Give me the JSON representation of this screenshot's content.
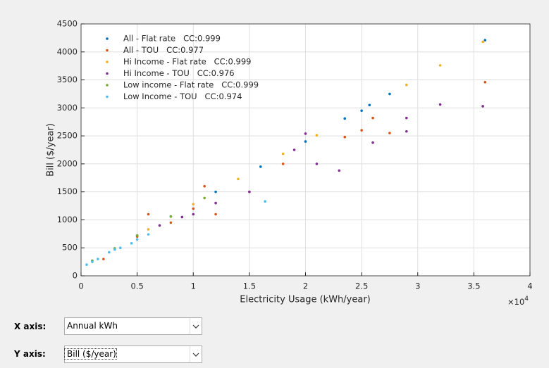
{
  "chart_data": {
    "type": "scatter",
    "xlabel": "Electricity Usage (kWh/year)",
    "ylabel": "Bill ($/year)",
    "x_multiplier": {
      "base": "×10",
      "exponent": "4"
    },
    "xlim": [
      0,
      40000
    ],
    "xticks": [
      0,
      {
        "value": 5000,
        "label": "0.5"
      },
      {
        "value": 10000,
        "label": "1"
      },
      {
        "value": 15000,
        "label": "1.5"
      },
      {
        "value": 20000,
        "label": "2"
      },
      {
        "value": 25000,
        "label": "2.5"
      },
      {
        "value": 30000,
        "label": "3"
      },
      {
        "value": 35000,
        "label": "3.5"
      },
      {
        "value": 40000,
        "label": "4"
      }
    ],
    "ylim": [
      0,
      4500
    ],
    "yticks": [
      0,
      500,
      1000,
      1500,
      2000,
      2500,
      3000,
      3500,
      4000,
      4500
    ],
    "grid": true,
    "legend": "upper left",
    "series": [
      {
        "name": "All - Flat rate   CC:0.999",
        "color": "#0072BD",
        "x": [
          1000,
          3000,
          5000,
          8000,
          12000,
          16000,
          20000,
          23500,
          25000,
          25700,
          27500,
          36000
        ],
        "values": [
          270,
          490,
          720,
          1060,
          1500,
          1950,
          2400,
          2810,
          2950,
          3050,
          3250,
          4210
        ]
      },
      {
        "name": "All - TOU   CC:0.977",
        "color": "#D95319",
        "x": [
          2000,
          5000,
          6000,
          8000,
          10000,
          11000,
          12000,
          15000,
          18000,
          23500,
          25000,
          26000,
          27500,
          36000
        ],
        "values": [
          300,
          700,
          1100,
          950,
          1200,
          1600,
          1100,
          1500,
          2000,
          2480,
          2600,
          2820,
          2550,
          3460
        ]
      },
      {
        "name": "Hi Income - Flat rate   CC:0.999",
        "color": "#EDB120",
        "x": [
          6000,
          10000,
          14000,
          18000,
          21000,
          29000,
          32000,
          35800
        ],
        "values": [
          830,
          1280,
          1730,
          2180,
          2510,
          3410,
          3760,
          4180
        ]
      },
      {
        "name": "Hi Income - TOU   CC:0.976",
        "color": "#7E2F8E",
        "x": [
          7000,
          9000,
          10000,
          12000,
          15000,
          19000,
          20000,
          21000,
          23000,
          26000,
          29000,
          29000,
          32000,
          35800
        ],
        "values": [
          900,
          1050,
          1100,
          1300,
          1500,
          2250,
          2540,
          2000,
          1880,
          2380,
          2820,
          2580,
          3060,
          3030
        ]
      },
      {
        "name": "Low income - Flat rate   CC:0.999",
        "color": "#77AC30",
        "x": [
          1000,
          3000,
          5000,
          8000,
          11000
        ],
        "values": [
          270,
          490,
          720,
          1060,
          1390
        ]
      },
      {
        "name": "Low Income - TOU   CC:0.974",
        "color": "#4DBEEE",
        "x": [
          500,
          1000,
          1500,
          2500,
          3000,
          3500,
          4500,
          5000,
          6000,
          16400
        ],
        "values": [
          200,
          250,
          300,
          420,
          470,
          500,
          580,
          650,
          740,
          1330
        ]
      }
    ]
  },
  "controls": [
    {
      "label": "X axis:",
      "selected": "Annual kWh"
    },
    {
      "label": "Y axis:",
      "selected": "Bill ($/year)"
    }
  ]
}
